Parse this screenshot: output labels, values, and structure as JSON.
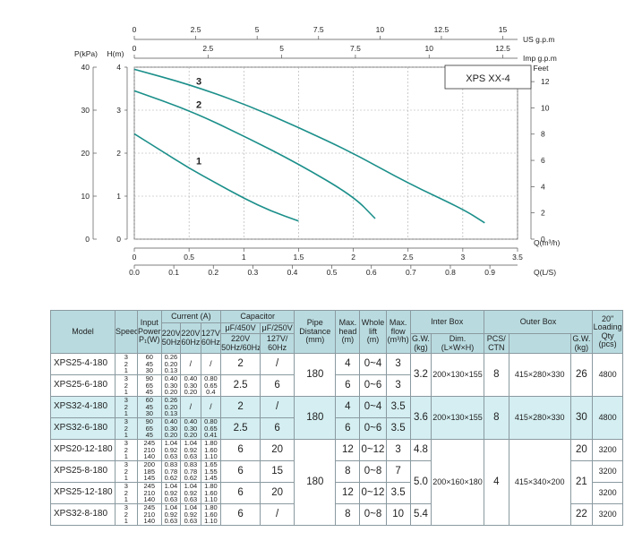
{
  "chart_data": {
    "type": "line",
    "title": "XPS XX-4",
    "top_axes": [
      {
        "unit": "US g.p.m",
        "ticks": [
          "0",
          "2.5",
          "5",
          "7.5",
          "10",
          "12.5",
          "15"
        ],
        "range": [
          0,
          15.6
        ]
      },
      {
        "unit": "Imp g.p.m",
        "ticks": [
          "0",
          "2.5",
          "5",
          "7.5",
          "10",
          "12.5"
        ],
        "range": [
          0,
          13.0
        ]
      }
    ],
    "y_left_pressure": {
      "label": "P(kPa)",
      "ticks": [
        "0",
        "10",
        "20",
        "30",
        "40"
      ],
      "range": [
        0,
        40
      ]
    },
    "y_left_head": {
      "label": "H(m)",
      "ticks": [
        "0",
        "1",
        "2",
        "3",
        "4"
      ],
      "range": [
        0,
        4
      ]
    },
    "y_right_feet": {
      "label": "Feet",
      "ticks": [
        "0",
        "2",
        "4",
        "6",
        "8",
        "10",
        "12"
      ],
      "range": [
        0,
        13.1
      ]
    },
    "x_flow_m3h": {
      "label": "Q(m³/h)",
      "ticks": [
        "0",
        "0.5",
        "1",
        "1.5",
        "2",
        "2.5",
        "3",
        "3.5"
      ],
      "range": [
        0,
        3.5
      ]
    },
    "x_flow_ls": {
      "label": "Q(L/S)",
      "ticks": [
        "0.0",
        "0.1",
        "0.2",
        "0.3",
        "0.4",
        "0.5",
        "0.6",
        "0.7",
        "0.8",
        "0.9"
      ],
      "range": [
        0,
        0.97
      ]
    },
    "grid": true,
    "series": [
      {
        "name": "1",
        "x": [
          0,
          0.25,
          0.5,
          0.75,
          1.0,
          1.25,
          1.5
        ],
        "y": [
          2.45,
          2.05,
          1.65,
          1.3,
          0.95,
          0.65,
          0.42
        ]
      },
      {
        "name": "2",
        "x": [
          0,
          0.5,
          1.0,
          1.5,
          2.0,
          2.2
        ],
        "y": [
          3.45,
          3.0,
          2.4,
          1.75,
          1.0,
          0.48
        ]
      },
      {
        "name": "3",
        "x": [
          0,
          0.5,
          1.0,
          1.5,
          2.0,
          2.5,
          3.0,
          3.2
        ],
        "y": [
          3.95,
          3.6,
          3.15,
          2.6,
          2.0,
          1.3,
          0.7,
          0.38
        ]
      }
    ]
  },
  "table": {
    "headers": {
      "model": "Model",
      "speed": "Speed",
      "input_power": [
        "Input",
        "Power",
        "P₁(W)"
      ],
      "current": "Current  (A)",
      "current_220_50": [
        "220V",
        "50Hz"
      ],
      "current_220_60": [
        "220V",
        "60Hz"
      ],
      "current_127_60": [
        "127V",
        "60Hz"
      ],
      "capacitor": "Capacitor",
      "cap_450": "μF/450V",
      "cap_250": "μF/250V",
      "cap_450_sub": [
        "220V",
        "50Hz/60Hz"
      ],
      "cap_250_sub": [
        "127V/",
        "60Hz"
      ],
      "pipe": [
        "Pipe",
        "Distance",
        "(mm)"
      ],
      "head": [
        "Max.",
        "head",
        "(m)"
      ],
      "lift": [
        "Whole",
        "lift",
        "(m)"
      ],
      "flow": [
        "Max.",
        "flow",
        "(m³/h)"
      ],
      "inter_box": "Inter Box",
      "gw": [
        "G.W.",
        "(kg)"
      ],
      "dim": [
        "Dim.",
        "(L×W×H)"
      ],
      "outer_box": "Outer Box",
      "pcs": [
        "PCS/",
        "CTN"
      ],
      "gw2": [
        "G.W.",
        "(kg)"
      ],
      "loading": [
        "20\"",
        "Loading",
        "Qty (pcs)"
      ]
    },
    "rows": [
      {
        "model": "XPS25-4-180",
        "speed": [
          "3",
          "2",
          "1"
        ],
        "power": [
          "60",
          "45",
          "30"
        ],
        "c1": [
          "0.26",
          "0.20",
          "0.13"
        ],
        "c2": "/",
        "c3": "/",
        "cap450": "2",
        "cap250": "/",
        "head": "4",
        "lift": "0~4",
        "flow": "3",
        "outer_gw": "26",
        "highlight": false
      },
      {
        "model": "XPS25-6-180",
        "speed": [
          "3",
          "2",
          "1"
        ],
        "power": [
          "90",
          "65",
          "45"
        ],
        "c1": [
          "0.40",
          "0.30",
          "0.20"
        ],
        "c2": [
          "0.40",
          "0.30",
          "0.20"
        ],
        "c3": [
          "0.80",
          "0.65",
          "0.4"
        ],
        "cap450": "2.5",
        "cap250": "6",
        "head": "6",
        "lift": "0~6",
        "flow": "3",
        "highlight": false
      },
      {
        "model": "XPS32-4-180",
        "speed": [
          "3",
          "2",
          "1"
        ],
        "power": [
          "60",
          "45",
          "30"
        ],
        "c1": [
          "0.26",
          "0.20",
          "0.13"
        ],
        "c2": "/",
        "c3": "/",
        "cap450": "2",
        "cap250": "/",
        "head": "4",
        "lift": "0~4",
        "flow": "3.5",
        "outer_gw": "30",
        "highlight": true
      },
      {
        "model": "XPS32-6-180",
        "speed": [
          "3",
          "2",
          "1"
        ],
        "power": [
          "90",
          "65",
          "45"
        ],
        "c1": [
          "0.40",
          "0.30",
          "0.20"
        ],
        "c2": [
          "0.40",
          "0.30",
          "0.20"
        ],
        "c3": [
          "0.80",
          "0.65",
          "0.41"
        ],
        "cap450": "2.5",
        "cap250": "6",
        "head": "6",
        "lift": "0~6",
        "flow": "3.5",
        "highlight": true
      },
      {
        "model": "XPS20-12-180",
        "speed": [
          "3",
          "2",
          "1"
        ],
        "power": [
          "245",
          "210",
          "140"
        ],
        "c1": [
          "1.04",
          "0.92",
          "0.63"
        ],
        "c2": [
          "1.04",
          "0.92",
          "0.63"
        ],
        "c3": [
          "1.80",
          "1.60",
          "1.10"
        ],
        "cap450": "6",
        "cap250": "20",
        "head": "12",
        "lift": "0~12",
        "flow": "3",
        "inter_gw": "4.8",
        "outer_gw": "20",
        "highlight": false
      },
      {
        "model": "XPS25-8-180",
        "speed": [
          "3",
          "2",
          "1"
        ],
        "power": [
          "200",
          "185",
          "145"
        ],
        "c1": [
          "0.83",
          "0.78",
          "0.62"
        ],
        "c2": [
          "0.83",
          "0.78",
          "0.62"
        ],
        "c3": [
          "1.65",
          "1.55",
          "1.45"
        ],
        "cap450": "6",
        "cap250": "15",
        "head": "8",
        "lift": "0~8",
        "flow": "7",
        "highlight": false
      },
      {
        "model": "XPS25-12-180",
        "speed": [
          "3",
          "2",
          "1"
        ],
        "power": [
          "245",
          "210",
          "140"
        ],
        "c1": [
          "1.04",
          "0.92",
          "0.63"
        ],
        "c2": [
          "1.04",
          "0.92",
          "0.63"
        ],
        "c3": [
          "1.80",
          "1.60",
          "1.10"
        ],
        "cap450": "6",
        "cap250": "20",
        "head": "12",
        "lift": "0~12",
        "flow": "3.5",
        "highlight": false
      },
      {
        "model": "XPS32-8-180",
        "speed": [
          "3",
          "2",
          "1"
        ],
        "power": [
          "245",
          "210",
          "140"
        ],
        "c1": [
          "1.04",
          "0.92",
          "0.63"
        ],
        "c2": [
          "1.04",
          "0.92",
          "0.63"
        ],
        "c3": [
          "1.80",
          "1.60",
          "1.10"
        ],
        "cap450": "6",
        "cap250": "/",
        "head": "8",
        "lift": "0~8",
        "flow": "10",
        "inter_gw": "5.4",
        "outer_gw": "22",
        "highlight": false
      }
    ],
    "groups": {
      "g1": {
        "pipe": "180",
        "inter_gw": "3.2",
        "inter_dim": "200×130×155",
        "pcs": "8",
        "outer_dim": "415×280×330",
        "loading": "4800"
      },
      "g2": {
        "pipe": "180",
        "inter_gw": "3.6",
        "inter_dim": "200×130×155",
        "pcs": "8",
        "outer_dim": "415×280×330",
        "loading": "4800"
      },
      "g3": {
        "pipe": "180",
        "inter_gw_mid": "5.0",
        "inter_dim": "200×160×180",
        "pcs": "4",
        "outer_dim": "415×340×200",
        "outer_gw_mid": "21",
        "loading": [
          "3200",
          "3200",
          "3200",
          "3200"
        ]
      }
    }
  }
}
